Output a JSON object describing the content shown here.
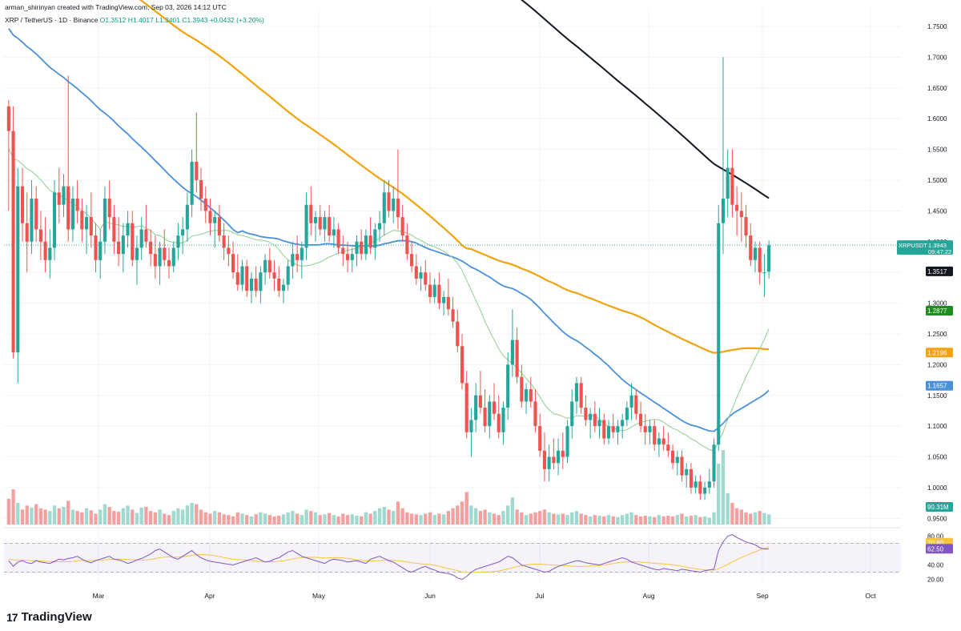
{
  "header": {
    "author_line": "arman_shirinyan created with TradingView.com, Sep 03, 2026 14:12 UTC",
    "symbol": "XRP / TetherUS · 1D · Binance",
    "ohlc": "O1.3512 H1.4017 L1.3401 C1.3943 +0.0432 (+3.20%)"
  },
  "brand": {
    "name": "TradingView",
    "logo_text": "17"
  },
  "colors": {
    "up": "#26a69a",
    "down": "#ef5350",
    "vol_up": "#9fd9cf",
    "vol_down": "#f3a1a0",
    "sma200": "#131722",
    "sma100": "#f0a30a",
    "sma50": "#4a90d9",
    "sma20": "#8fce8f",
    "rsi": "#7e57c2",
    "rsi_ma": "#f5c542",
    "price_line": "#26a69a"
  },
  "chart_data": {
    "type": "candlestick",
    "symbol": "XRPUSDT",
    "y_axis": {
      "ticks": [
        "1.7500",
        "1.7000",
        "1.6500",
        "1.6000",
        "1.5500",
        "1.5000",
        "1.4500",
        "1.4000",
        "1.3500",
        "1.3000",
        "1.2500",
        "1.2000",
        "1.1500",
        "1.1000",
        "1.0500",
        "1.0000",
        "0.9500"
      ],
      "range": [
        0.94,
        1.78
      ]
    },
    "x_axis": {
      "labels": [
        "Mar",
        "Apr",
        "May",
        "Jun",
        "Jul",
        "Aug",
        "Sep",
        "Oct"
      ]
    },
    "price_labels": [
      {
        "text": "XRPUSDT",
        "value": 1.3943,
        "color": "#26a69a",
        "sub": "09:47:22"
      },
      {
        "text": "1.3517",
        "value": 1.3517,
        "color": "#131722"
      },
      {
        "text": "1.2877",
        "value": 1.2877,
        "color": "#1e8c1e"
      },
      {
        "text": "1.2196",
        "value": 1.2196,
        "color": "#f0a30a"
      },
      {
        "text": "1.1657",
        "value": 1.1657,
        "color": "#4a90d9"
      }
    ],
    "volume_label": "90.31M",
    "rsi": {
      "ticks": [
        "80.00",
        "40.00",
        "20.00"
      ],
      "labels": [
        {
          "text": "70.80",
          "color": "#f5c542",
          "value": 70.8
        },
        {
          "text": "62.50",
          "color": "#7e57c2",
          "value": 62.5
        }
      ],
      "upper": 70,
      "lower": 30
    },
    "candles": [
      [
        0,
        1.62,
        1.63,
        1.45,
        1.58
      ],
      [
        1,
        1.58,
        1.62,
        1.21,
        1.22
      ],
      [
        2,
        1.22,
        1.52,
        1.17,
        1.49
      ],
      [
        3,
        1.49,
        1.52,
        1.4,
        1.43
      ],
      [
        4,
        1.43,
        1.48,
        1.35,
        1.4
      ],
      [
        5,
        1.4,
        1.5,
        1.38,
        1.47
      ],
      [
        6,
        1.47,
        1.49,
        1.4,
        1.42
      ],
      [
        7,
        1.42,
        1.45,
        1.37,
        1.4
      ],
      [
        8,
        1.4,
        1.44,
        1.35,
        1.37
      ],
      [
        9,
        1.37,
        1.42,
        1.34,
        1.39
      ],
      [
        10,
        1.39,
        1.5,
        1.37,
        1.48
      ],
      [
        11,
        1.48,
        1.52,
        1.43,
        1.46
      ],
      [
        12,
        1.46,
        1.51,
        1.44,
        1.49
      ],
      [
        13,
        1.49,
        1.67,
        1.4,
        1.42
      ],
      [
        14,
        1.42,
        1.49,
        1.4,
        1.47
      ],
      [
        15,
        1.47,
        1.5,
        1.43,
        1.45
      ],
      [
        16,
        1.45,
        1.47,
        1.4,
        1.42
      ],
      [
        17,
        1.42,
        1.46,
        1.38,
        1.44
      ],
      [
        18,
        1.44,
        1.48,
        1.39,
        1.41
      ],
      [
        19,
        1.41,
        1.43,
        1.35,
        1.37
      ],
      [
        20,
        1.37,
        1.42,
        1.34,
        1.4
      ],
      [
        21,
        1.4,
        1.49,
        1.38,
        1.47
      ],
      [
        22,
        1.47,
        1.5,
        1.42,
        1.44
      ],
      [
        23,
        1.44,
        1.46,
        1.38,
        1.4
      ],
      [
        24,
        1.4,
        1.44,
        1.36,
        1.38
      ],
      [
        25,
        1.38,
        1.43,
        1.35,
        1.41
      ],
      [
        26,
        1.41,
        1.45,
        1.39,
        1.43
      ],
      [
        27,
        1.43,
        1.45,
        1.36,
        1.37
      ],
      [
        28,
        1.37,
        1.41,
        1.33,
        1.39
      ],
      [
        29,
        1.39,
        1.44,
        1.37,
        1.42
      ],
      [
        30,
        1.42,
        1.46,
        1.39,
        1.4
      ],
      [
        31,
        1.4,
        1.42,
        1.36,
        1.38
      ],
      [
        32,
        1.38,
        1.41,
        1.34,
        1.36
      ],
      [
        33,
        1.36,
        1.4,
        1.33,
        1.39
      ],
      [
        34,
        1.39,
        1.42,
        1.36,
        1.37
      ],
      [
        35,
        1.37,
        1.39,
        1.34,
        1.36
      ],
      [
        36,
        1.36,
        1.4,
        1.35,
        1.39
      ],
      [
        37,
        1.39,
        1.43,
        1.37,
        1.41
      ],
      [
        38,
        1.41,
        1.44,
        1.38,
        1.42
      ],
      [
        39,
        1.42,
        1.48,
        1.4,
        1.46
      ],
      [
        40,
        1.46,
        1.55,
        1.44,
        1.53
      ],
      [
        41,
        1.53,
        1.61,
        1.48,
        1.5
      ],
      [
        42,
        1.5,
        1.52,
        1.45,
        1.47
      ],
      [
        43,
        1.47,
        1.49,
        1.43,
        1.45
      ],
      [
        44,
        1.45,
        1.47,
        1.41,
        1.43
      ],
      [
        45,
        1.43,
        1.45,
        1.39,
        1.44
      ],
      [
        46,
        1.44,
        1.46,
        1.4,
        1.41
      ],
      [
        47,
        1.41,
        1.43,
        1.37,
        1.39
      ],
      [
        48,
        1.39,
        1.41,
        1.36,
        1.38
      ],
      [
        49,
        1.38,
        1.4,
        1.34,
        1.35
      ],
      [
        50,
        1.35,
        1.38,
        1.32,
        1.33
      ],
      [
        51,
        1.33,
        1.37,
        1.32,
        1.36
      ],
      [
        52,
        1.36,
        1.37,
        1.31,
        1.32
      ],
      [
        53,
        1.32,
        1.35,
        1.3,
        1.34
      ],
      [
        54,
        1.34,
        1.36,
        1.31,
        1.32
      ],
      [
        55,
        1.32,
        1.36,
        1.3,
        1.35
      ],
      [
        56,
        1.35,
        1.38,
        1.33,
        1.37
      ],
      [
        57,
        1.37,
        1.39,
        1.34,
        1.35
      ],
      [
        58,
        1.35,
        1.37,
        1.32,
        1.34
      ],
      [
        59,
        1.34,
        1.36,
        1.31,
        1.32
      ],
      [
        60,
        1.32,
        1.34,
        1.3,
        1.33
      ],
      [
        61,
        1.33,
        1.37,
        1.32,
        1.36
      ],
      [
        62,
        1.36,
        1.4,
        1.34,
        1.38
      ],
      [
        63,
        1.38,
        1.41,
        1.35,
        1.37
      ],
      [
        64,
        1.37,
        1.4,
        1.34,
        1.39
      ],
      [
        65,
        1.39,
        1.48,
        1.37,
        1.46
      ],
      [
        66,
        1.46,
        1.49,
        1.41,
        1.43
      ],
      [
        67,
        1.43,
        1.45,
        1.4,
        1.44
      ],
      [
        68,
        1.44,
        1.46,
        1.41,
        1.42
      ],
      [
        69,
        1.42,
        1.45,
        1.4,
        1.44
      ],
      [
        70,
        1.44,
        1.46,
        1.4,
        1.41
      ],
      [
        71,
        1.41,
        1.44,
        1.39,
        1.42
      ],
      [
        72,
        1.42,
        1.43,
        1.38,
        1.39
      ],
      [
        73,
        1.39,
        1.41,
        1.36,
        1.38
      ],
      [
        74,
        1.38,
        1.4,
        1.35,
        1.37
      ],
      [
        75,
        1.37,
        1.39,
        1.35,
        1.38
      ],
      [
        76,
        1.38,
        1.41,
        1.36,
        1.4
      ],
      [
        77,
        1.4,
        1.42,
        1.37,
        1.38
      ],
      [
        78,
        1.38,
        1.42,
        1.37,
        1.41
      ],
      [
        79,
        1.41,
        1.44,
        1.38,
        1.39
      ],
      [
        80,
        1.39,
        1.43,
        1.37,
        1.42
      ],
      [
        81,
        1.42,
        1.45,
        1.4,
        1.43
      ],
      [
        82,
        1.43,
        1.5,
        1.41,
        1.48
      ],
      [
        83,
        1.48,
        1.5,
        1.44,
        1.45
      ],
      [
        84,
        1.45,
        1.49,
        1.43,
        1.47
      ],
      [
        85,
        1.47,
        1.55,
        1.42,
        1.44
      ],
      [
        86,
        1.44,
        1.46,
        1.4,
        1.41
      ],
      [
        87,
        1.41,
        1.43,
        1.37,
        1.38
      ],
      [
        88,
        1.38,
        1.4,
        1.35,
        1.36
      ],
      [
        89,
        1.36,
        1.38,
        1.33,
        1.34
      ],
      [
        90,
        1.34,
        1.36,
        1.32,
        1.35
      ],
      [
        91,
        1.35,
        1.37,
        1.32,
        1.33
      ],
      [
        92,
        1.33,
        1.35,
        1.3,
        1.31
      ],
      [
        93,
        1.31,
        1.34,
        1.3,
        1.33
      ],
      [
        94,
        1.33,
        1.35,
        1.29,
        1.3
      ],
      [
        95,
        1.3,
        1.32,
        1.28,
        1.31
      ],
      [
        96,
        1.31,
        1.34,
        1.28,
        1.29
      ],
      [
        97,
        1.29,
        1.31,
        1.26,
        1.27
      ],
      [
        98,
        1.27,
        1.29,
        1.22,
        1.23
      ],
      [
        99,
        1.23,
        1.25,
        1.16,
        1.17
      ],
      [
        100,
        1.17,
        1.19,
        1.08,
        1.09
      ],
      [
        101,
        1.09,
        1.13,
        1.05,
        1.11
      ],
      [
        102,
        1.11,
        1.17,
        1.09,
        1.15
      ],
      [
        103,
        1.15,
        1.19,
        1.12,
        1.13
      ],
      [
        104,
        1.13,
        1.16,
        1.09,
        1.1
      ],
      [
        105,
        1.1,
        1.15,
        1.08,
        1.14
      ],
      [
        106,
        1.14,
        1.17,
        1.11,
        1.12
      ],
      [
        107,
        1.12,
        1.15,
        1.08,
        1.09
      ],
      [
        108,
        1.09,
        1.14,
        1.07,
        1.13
      ],
      [
        109,
        1.13,
        1.22,
        1.11,
        1.2
      ],
      [
        110,
        1.2,
        1.29,
        1.18,
        1.24
      ],
      [
        111,
        1.24,
        1.26,
        1.17,
        1.18
      ],
      [
        112,
        1.18,
        1.2,
        1.13,
        1.14
      ],
      [
        113,
        1.14,
        1.17,
        1.12,
        1.16
      ],
      [
        114,
        1.16,
        1.18,
        1.13,
        1.14
      ],
      [
        115,
        1.14,
        1.16,
        1.09,
        1.1
      ],
      [
        116,
        1.1,
        1.12,
        1.05,
        1.06
      ],
      [
        117,
        1.06,
        1.09,
        1.01,
        1.03
      ],
      [
        118,
        1.03,
        1.07,
        1.01,
        1.05
      ],
      [
        119,
        1.05,
        1.08,
        1.03,
        1.04
      ],
      [
        120,
        1.04,
        1.08,
        1.02,
        1.06
      ],
      [
        121,
        1.06,
        1.09,
        1.03,
        1.05
      ],
      [
        122,
        1.05,
        1.11,
        1.04,
        1.1
      ],
      [
        123,
        1.1,
        1.16,
        1.08,
        1.14
      ],
      [
        124,
        1.14,
        1.18,
        1.12,
        1.17
      ],
      [
        125,
        1.17,
        1.18,
        1.12,
        1.13
      ],
      [
        126,
        1.13,
        1.15,
        1.1,
        1.11
      ],
      [
        127,
        1.11,
        1.13,
        1.08,
        1.12
      ],
      [
        128,
        1.12,
        1.14,
        1.09,
        1.1
      ],
      [
        129,
        1.1,
        1.13,
        1.08,
        1.11
      ],
      [
        130,
        1.11,
        1.12,
        1.07,
        1.08
      ],
      [
        131,
        1.08,
        1.11,
        1.07,
        1.1
      ],
      [
        132,
        1.1,
        1.12,
        1.08,
        1.09
      ],
      [
        133,
        1.09,
        1.11,
        1.07,
        1.1
      ],
      [
        134,
        1.1,
        1.12,
        1.08,
        1.11
      ],
      [
        135,
        1.11,
        1.14,
        1.1,
        1.13
      ],
      [
        136,
        1.13,
        1.17,
        1.11,
        1.15
      ],
      [
        137,
        1.15,
        1.16,
        1.11,
        1.12
      ],
      [
        138,
        1.12,
        1.14,
        1.09,
        1.1
      ],
      [
        139,
        1.1,
        1.12,
        1.07,
        1.09
      ],
      [
        140,
        1.09,
        1.11,
        1.07,
        1.1
      ],
      [
        141,
        1.1,
        1.11,
        1.06,
        1.07
      ],
      [
        142,
        1.07,
        1.09,
        1.05,
        1.08
      ],
      [
        143,
        1.08,
        1.1,
        1.06,
        1.07
      ],
      [
        144,
        1.07,
        1.09,
        1.05,
        1.06
      ],
      [
        145,
        1.06,
        1.07,
        1.03,
        1.04
      ],
      [
        146,
        1.04,
        1.06,
        1.02,
        1.05
      ],
      [
        147,
        1.05,
        1.06,
        1.01,
        1.02
      ],
      [
        148,
        1.02,
        1.04,
        1.0,
        1.03
      ],
      [
        149,
        1.03,
        1.04,
        0.99,
        1.0
      ],
      [
        150,
        1.0,
        1.02,
        0.99,
        1.01
      ],
      [
        151,
        1.01,
        1.02,
        0.98,
        0.99
      ],
      [
        152,
        0.99,
        1.01,
        0.98,
        1.0
      ],
      [
        153,
        1.0,
        1.03,
        0.99,
        1.01
      ],
      [
        154,
        1.01,
        1.08,
        1.0,
        1.07
      ],
      [
        155,
        1.07,
        1.46,
        1.06,
        1.43
      ],
      [
        156,
        1.43,
        1.7,
        1.38,
        1.47
      ],
      [
        157,
        1.47,
        1.55,
        1.44,
        1.52
      ],
      [
        158,
        1.52,
        1.55,
        1.44,
        1.46
      ],
      [
        159,
        1.46,
        1.49,
        1.41,
        1.45
      ],
      [
        160,
        1.45,
        1.48,
        1.4,
        1.44
      ],
      [
        161,
        1.44,
        1.46,
        1.39,
        1.41
      ],
      [
        162,
        1.41,
        1.43,
        1.36,
        1.37
      ],
      [
        163,
        1.37,
        1.4,
        1.35,
        1.39
      ],
      [
        164,
        1.39,
        1.4,
        1.33,
        1.35
      ],
      [
        165,
        1.35,
        1.38,
        1.31,
        1.35
      ],
      [
        166,
        1.3512,
        1.4017,
        1.3401,
        1.3943
      ]
    ],
    "volumes": [
      38,
      52,
      32,
      22,
      28,
      25,
      30,
      24,
      22,
      20,
      28,
      24,
      26,
      35,
      22,
      20,
      18,
      24,
      21,
      16,
      22,
      30,
      26,
      20,
      19,
      24,
      28,
      22,
      17,
      25,
      26,
      20,
      18,
      22,
      16,
      14,
      20,
      24,
      22,
      28,
      32,
      30,
      22,
      18,
      16,
      20,
      18,
      15,
      14,
      12,
      18,
      16,
      14,
      12,
      15,
      18,
      16,
      14,
      12,
      13,
      15,
      18,
      20,
      16,
      14,
      22,
      20,
      18,
      14,
      15,
      17,
      14,
      12,
      16,
      14,
      15,
      13,
      12,
      18,
      16,
      20,
      24,
      26,
      22,
      20,
      34,
      24,
      18,
      16,
      15,
      14,
      16,
      18,
      14,
      16,
      15,
      20,
      24,
      28,
      34,
      48,
      28,
      24,
      20,
      22,
      18,
      16,
      14,
      20,
      28,
      40,
      22,
      18,
      14,
      16,
      18,
      20,
      22,
      18,
      16,
      15,
      16,
      14,
      18,
      20,
      16,
      14,
      12,
      14,
      13,
      12,
      14,
      12,
      11,
      14,
      16,
      18,
      14,
      12,
      13,
      12,
      11,
      14,
      12,
      13,
      12,
      14,
      16,
      12,
      13,
      14,
      11,
      12,
      10,
      18,
      90,
      110,
      46,
      32,
      24,
      22,
      18,
      16,
      18,
      20,
      17,
      15
    ],
    "rsi_values": [
      46,
      38,
      44,
      46,
      43,
      42,
      46,
      44,
      43,
      42,
      45,
      48,
      47,
      49,
      50,
      52,
      48,
      45,
      43,
      46,
      48,
      50,
      52,
      48,
      47,
      45,
      42,
      44,
      47,
      49,
      52,
      55,
      60,
      62,
      58,
      54,
      50,
      48,
      52,
      56,
      60,
      54,
      50,
      47,
      45,
      44,
      43,
      42,
      41,
      40,
      42,
      44,
      46,
      48,
      50,
      47,
      44,
      45,
      48,
      50,
      54,
      58,
      60,
      56,
      52,
      50,
      48,
      46,
      44,
      42,
      46,
      48,
      47,
      46,
      44,
      45,
      46,
      44,
      42,
      48,
      50,
      52,
      49,
      46,
      44,
      40,
      36,
      32,
      30,
      33,
      36,
      38,
      35,
      33,
      30,
      29,
      28,
      26,
      22,
      20,
      24,
      30,
      34,
      36,
      38,
      40,
      42,
      44,
      48,
      52,
      50,
      45,
      40,
      38,
      36,
      34,
      32,
      30,
      31,
      35,
      38,
      40,
      42,
      44,
      46,
      45,
      43,
      42,
      41,
      40,
      42,
      44,
      46,
      48,
      50,
      48,
      44,
      42,
      40,
      38,
      36,
      34,
      33,
      35,
      34,
      33,
      32,
      34,
      33,
      32,
      31,
      30,
      32,
      33,
      34,
      60,
      72,
      80,
      82,
      78,
      75,
      72,
      70,
      68,
      64,
      62,
      62.5
    ]
  }
}
